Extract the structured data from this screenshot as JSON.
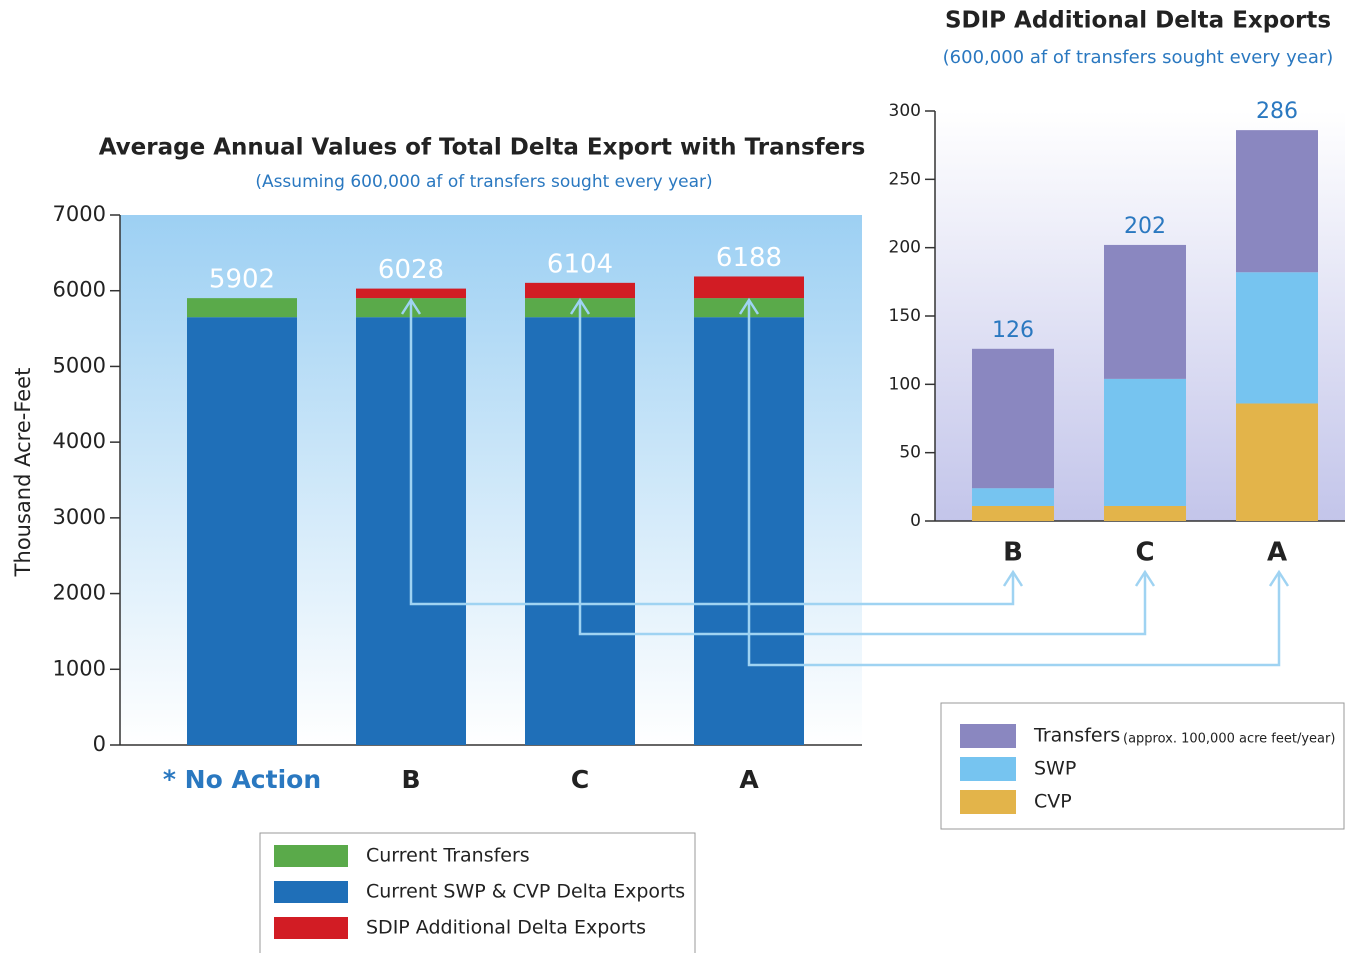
{
  "chart_data": [
    {
      "type": "stacked-bar",
      "title": "Average Annual Values of Total Delta Export with Transfers",
      "subtitle": "(Assuming 600,000 af of transfers sought every year)",
      "y_label": "Thousand Acre-Feet",
      "categories": [
        "* No Action",
        "B",
        "C",
        "A"
      ],
      "series": [
        {
          "name": "Current SWP & CVP Delta Exports",
          "color": "#1f6fb8",
          "values": [
            5650,
            5650,
            5650,
            5650
          ]
        },
        {
          "name": "Current Transfers",
          "color": "#5aaa4a",
          "values": [
            252,
            252,
            252,
            252
          ]
        },
        {
          "name": "SDIP Additional Delta Exports",
          "color": "#d21c24",
          "values": [
            0,
            126,
            202,
            286
          ]
        }
      ],
      "totals": [
        5902,
        6028,
        6104,
        6188
      ],
      "ylim": [
        0,
        7000
      ],
      "yticks": [
        0,
        1000,
        2000,
        3000,
        4000,
        5000,
        6000,
        7000
      ]
    },
    {
      "type": "stacked-bar",
      "title": "SDIP Additional Delta Exports",
      "subtitle": "(600,000 af of transfers sought every year)",
      "categories": [
        "B",
        "C",
        "A"
      ],
      "series": [
        {
          "name": "CVP",
          "color": "#e3b44a",
          "values": [
            11,
            11,
            86
          ]
        },
        {
          "name": "SWP",
          "color": "#76c4f0",
          "values": [
            13,
            93,
            96
          ]
        },
        {
          "name": "Transfers",
          "color": "#8a87c0",
          "values": [
            102,
            98,
            104
          ]
        }
      ],
      "totals": [
        126,
        202,
        286
      ],
      "legend_note": "(approx. 100,000 acre feet/year)",
      "ylim": [
        0,
        300
      ],
      "yticks": [
        0,
        50,
        100,
        150,
        200,
        250,
        300
      ]
    }
  ]
}
